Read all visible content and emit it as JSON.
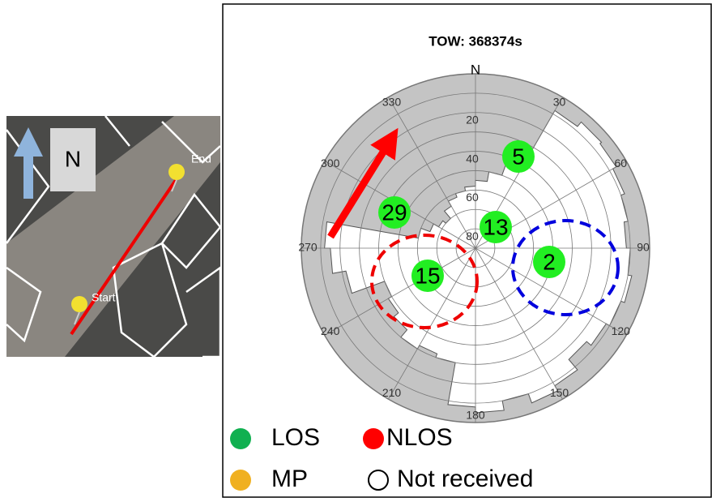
{
  "map": {
    "north": "N",
    "end": "End",
    "start": "Start"
  },
  "skyplot": {
    "title": "TOW: 368374s",
    "north": "N",
    "azimuth_labels": [
      30,
      60,
      90,
      120,
      150,
      180,
      210,
      240,
      270,
      300,
      330
    ],
    "elevation_labels": [
      20,
      40,
      60,
      80
    ],
    "satellites": [
      "5",
      "29",
      "13",
      "2",
      "15"
    ]
  },
  "legend": [
    "LOS",
    "NLOS",
    "MP",
    "Not received"
  ]
}
